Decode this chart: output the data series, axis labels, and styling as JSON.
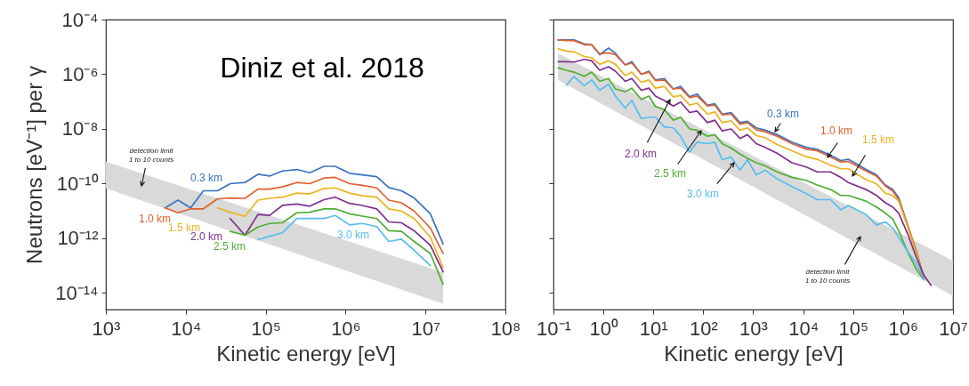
{
  "chart_data": [
    {
      "type": "line",
      "log": "xy",
      "xlabel": "Kinetic energy [eV]",
      "ylabel": "Neutrons [eV⁻¹] per γ",
      "xlim": [
        1000,
        100000000
      ],
      "ylim": [
        2.5e-15,
        0.0001
      ],
      "xticks": [
        {
          "value": 1000,
          "label": "10³"
        },
        {
          "value": 10000,
          "label": "10⁴"
        },
        {
          "value": 100000,
          "label": "10⁵"
        },
        {
          "value": 1000000,
          "label": "10⁶"
        },
        {
          "value": 10000000,
          "label": "10⁷"
        },
        {
          "value": 100000000,
          "label": "10⁸"
        }
      ],
      "yticks": [
        {
          "value": 1e-14,
          "label": "10⁻¹⁴"
        },
        {
          "value": 1e-12,
          "label": "10⁻¹²"
        },
        {
          "value": 1e-10,
          "label": "10⁻¹⁰"
        },
        {
          "value": 1e-08,
          "label": "10⁻⁸"
        },
        {
          "value": 1e-06,
          "label": "10⁻⁶"
        },
        {
          "value": 0.0001,
          "label": "10⁻⁴"
        }
      ],
      "annotations": [
        "Diniz et al. 2018",
        "detection limit\n1 to 10 counts"
      ],
      "x": [
        5500,
        8000,
        11500,
        16600,
        25000,
        36000,
        55000,
        80000,
        112000,
        162000,
        245000,
        355000,
        537000,
        741000,
        1120000,
        1620000,
        2450000,
        3470000,
        5000000,
        7200000,
        11500000,
        16600000
      ],
      "series": [
        {
          "type": "area",
          "color": "#d9d9d9",
          "x": [
            1000,
            16600000
          ],
          "values": [
            null,
            null
          ],
          "lower": [
            6.7e-11,
            4.1e-15
          ],
          "upper": [
            6.4e-10,
            5.7e-14
          ]
        },
        {
          "name": "0.3 km",
          "color": "#3a72c2",
          "values": [
            1.3e-11,
            2.5e-11,
            1.3e-11,
            5.5e-11,
            5.5e-11,
            1e-10,
            1.1e-10,
            2.2e-10,
            1.9e-10,
            2.9e-10,
            3.3e-10,
            2.5e-10,
            4.3e-10,
            4.3e-10,
            2.4e-10,
            2.1e-10,
            1.8e-10,
            7.2e-11,
            5.5e-11,
            3e-11,
            7.9e-12,
            6.2e-13
          ]
        },
        {
          "name": "1.0 km",
          "color": "#e0602e",
          "values": [
            1.3e-11,
            8.6e-12,
            1.2e-11,
            1.2e-11,
            2.8e-11,
            3e-11,
            2.9e-11,
            6.3e-11,
            6.3e-11,
            7.6e-11,
            1.1e-10,
            1e-10,
            1.6e-10,
            1.7e-10,
            1e-10,
            8.7e-11,
            7e-11,
            2.5e-11,
            2e-11,
            1e-11,
            2.4e-12,
            2.8e-13
          ]
        },
        {
          "name": "1.5 km",
          "color": "#edb21f",
          "values": [
            null,
            null,
            null,
            null,
            1.3e-11,
            9e-12,
            6.4e-12,
            2.5e-11,
            2.9e-11,
            3.2e-11,
            4.5e-11,
            4.2e-11,
            6.7e-11,
            7e-11,
            4.5e-11,
            3.6e-11,
            3.2e-11,
            1.2e-11,
            1e-11,
            5.3e-12,
            1.1e-12,
            8.5e-14
          ]
        },
        {
          "name": "2.0 km",
          "color": "#7e2f8e",
          "values": [
            null,
            null,
            null,
            null,
            null,
            5.3e-12,
            1.3e-12,
            7.5e-12,
            6.9e-12,
            1.6e-11,
            1.8e-11,
            1.5e-11,
            2.6e-11,
            3.2e-11,
            1.9e-11,
            1.6e-11,
            1.2e-11,
            4e-12,
            3.7e-12,
            1.9e-12,
            5.5e-13,
            6e-14
          ]
        },
        {
          "name": "2.5 km",
          "color": "#4fae34",
          "values": [
            null,
            null,
            null,
            null,
            null,
            1.8e-12,
            1.3e-12,
            2.6e-12,
            3.5e-12,
            3.7e-12,
            8.6e-12,
            9e-12,
            1.2e-11,
            1.2e-11,
            7.9e-12,
            6.5e-12,
            5.3e-12,
            1.9e-12,
            1.8e-12,
            7.7e-13,
            2.8e-13,
            2.1e-14
          ]
        },
        {
          "name": "3.0 km",
          "color": "#56bdee",
          "values": [
            null,
            null,
            null,
            null,
            null,
            null,
            null,
            8.9e-13,
            1.2e-12,
            1.6e-12,
            5.3e-12,
            5.3e-12,
            5.3e-12,
            6.9e-12,
            3.1e-12,
            3.5e-12,
            2.7e-12,
            7.7e-13,
            9.3e-13,
            3.7e-13,
            1e-13,
            null
          ]
        }
      ]
    },
    {
      "type": "line",
      "log": "xy",
      "xlabel": "Kinetic energy [eV]",
      "xlim": [
        0.1,
        10000000
      ],
      "ylim": [
        2.5e-15,
        0.0001
      ],
      "tick_labels": "x",
      "xticks": [
        {
          "value": 0.1,
          "label": "10⁻¹"
        },
        {
          "value": 1,
          "label": "10⁰"
        },
        {
          "value": 10,
          "label": "10¹"
        },
        {
          "value": 100,
          "label": "10²"
        },
        {
          "value": 1000,
          "label": "10³"
        },
        {
          "value": 10000,
          "label": "10⁴"
        },
        {
          "value": 100000,
          "label": "10⁵"
        },
        {
          "value": 1000000,
          "label": "10⁶"
        },
        {
          "value": 10000000,
          "label": "10⁷"
        }
      ],
      "yticks": [
        {
          "value": 1e-14,
          "label": null
        },
        {
          "value": 1e-12,
          "label": null
        },
        {
          "value": 1e-10,
          "label": null
        },
        {
          "value": 1e-08,
          "label": null
        },
        {
          "value": 1e-06,
          "label": null
        },
        {
          "value": 0.0001,
          "label": null
        }
      ],
      "annotations": [
        "detection limit\n1 to 10 counts"
      ],
      "x": [
        0.124,
        0.182,
        0.257,
        0.415,
        0.583,
        0.844,
        1.27,
        1.74,
        2.74,
        3.7,
        5.73,
        8.17,
        11,
        16.6,
        25.1,
        35.3,
        53.2,
        74.9,
        121,
        170,
        239,
        361,
        544,
        765,
        1150,
        1740,
        3000,
        5940,
        11800,
        19000,
        35200,
        56800,
        80000,
        182000,
        293000,
        442000,
        621000,
        817000,
        1230000,
        1850000,
        2610000,
        3670000
      ],
      "series": [
        {
          "type": "area",
          "color": "#d9d9d9",
          "x": [
            0.124,
            10000000
          ],
          "values": [
            null,
            null
          ],
          "lower": [
            6.2e-07,
            7.8e-15
          ],
          "upper": [
            5.8e-06,
            1.5e-13
          ]
        },
        {
          "name": "0.3 km",
          "color": "#3a72c2",
          "values": [
            1.8e-05,
            1.8e-05,
            1.8e-05,
            1.3e-05,
            1.2e-05,
            5.2e-06,
            9.1e-06,
            5.8e-06,
            2.2e-06,
            2.9e-06,
            1e-06,
            1.3e-06,
            6.2e-07,
            7e-07,
            2.9e-07,
            3.6e-07,
            1.5e-07,
            1.9e-07,
            7.4e-08,
            8.4e-08,
            3.5e-08,
            4e-08,
            1.7e-08,
            1.9e-08,
            1.1e-08,
            9e-09,
            6.2e-09,
            3.3e-09,
            2.1e-09,
            1.8e-09,
            1.1e-09,
            7e-10,
            7.8e-10,
            3.3e-10,
            2.1e-10,
            8.9e-11,
            6.1e-11,
            3.1e-11,
            3.1e-12,
            3.3e-13,
            3.5e-14,
            null
          ]
        },
        {
          "name": "1.0 km",
          "color": "#e0602e",
          "values": [
            1.8e-05,
            1.7e-05,
            1.7e-05,
            1.2e-05,
            1.2e-05,
            5.6e-06,
            6.1e-06,
            5.2e-06,
            2.2e-06,
            2.6e-06,
            1e-06,
            1.2e-06,
            5.9e-07,
            6.2e-07,
            2.9e-07,
            3.1e-07,
            1.4e-07,
            1.6e-07,
            6.9e-08,
            7.4e-08,
            3.3e-08,
            3.5e-08,
            1.5e-08,
            1.7e-08,
            9.4e-09,
            7.9e-09,
            5.4e-09,
            2.9e-09,
            1.8e-09,
            1.6e-09,
            9.5e-10,
            6.2e-10,
            6.5e-10,
            2.9e-10,
            1.9e-10,
            8.3e-11,
            5.4e-11,
            2.6e-11,
            3.1e-12,
            3.3e-13,
            3.5e-14,
            null
          ]
        },
        {
          "name": "1.5 km",
          "color": "#edb21f",
          "values": [
            8.5e-06,
            7.1e-06,
            6.6e-06,
            4.5e-06,
            4e-06,
            2.3e-06,
            3.1e-06,
            2.3e-06,
            9e-07,
            1.2e-06,
            5.1e-07,
            6.2e-07,
            3.1e-07,
            3.6e-07,
            1.5e-07,
            1.7e-07,
            7.4e-08,
            8.9e-08,
            3.5e-08,
            4.2e-08,
            1.7e-08,
            2e-08,
            9e-09,
            1.1e-08,
            5.7e-09,
            4.8e-09,
            2.7e-09,
            1.6e-09,
            9.5e-10,
            7.8e-10,
            4.7e-10,
            3.5e-10,
            3.5e-10,
            1.4e-10,
            1e-10,
            4.5e-11,
            3.7e-11,
            2.3e-11,
            2.7e-12,
            2.9e-13,
            3.1e-14,
            null
          ]
        },
        {
          "name": "2.0 km",
          "color": "#7e2f8e",
          "values": [
            2.9e-06,
            2.9e-06,
            2.8e-06,
            3.5e-06,
            3.1e-06,
            1.4e-06,
            1.9e-06,
            1.3e-06,
            5.5e-07,
            7e-07,
            2.6e-07,
            3.1e-07,
            1.6e-07,
            1.1e-07,
            6.9e-08,
            9.6e-08,
            4e-08,
            4.5e-08,
            1.7e-08,
            2.1e-08,
            8.5e-09,
            1e-08,
            4.5e-09,
            6.2e-09,
            2.9e-09,
            2.1e-09,
            1.3e-09,
            5.8e-10,
            4e-10,
            2.7e-10,
            2.7e-10,
            1.7e-10,
            1.1e-10,
            6.1e-11,
            3.7e-11,
            2e-11,
            1.4e-11,
            8.4e-12,
            1.5e-12,
            2e-13,
            4.5e-14,
            1.9e-14
          ]
        },
        {
          "name": "2.5 km",
          "color": "#4fae34",
          "values": [
            1.7e-06,
            1.4e-06,
            1.2e-06,
            8.4e-07,
            1.2e-06,
            5.5e-07,
            7e-07,
            2.9e-07,
            2.3e-07,
            3.1e-07,
            1.2e-07,
            1.6e-07,
            6.6e-08,
            5.1e-08,
            2.1e-08,
            2.7e-08,
            1e-08,
            9e-09,
            5.4e-09,
            6.2e-09,
            2.9e-09,
            2e-09,
            1.2e-09,
            8.4e-10,
            5.8e-10,
            4.5e-10,
            2.7e-10,
            1.7e-10,
            1.3e-10,
            8.9e-11,
            6.1e-11,
            3.7e-11,
            3.7e-11,
            2.3e-11,
            1.4e-11,
            8.4e-12,
            5.1e-12,
            1.9e-12,
            3.3e-13,
            7.3e-14,
            3.1e-14,
            null
          ]
        },
        {
          "name": "3.0 km",
          "color": "#56bdee",
          "values": [
            null,
            4e-07,
            8.4e-07,
            3.8e-07,
            6.2e-07,
            2.6e-07,
            4.3e-07,
            1.6e-07,
            5.8e-08,
            1.1e-07,
            2.4e-08,
            2.7e-08,
            2.7e-08,
            1.2e-08,
            1.1e-08,
            5.4e-09,
            1.4e-09,
            3.3e-09,
            2.9e-09,
            3.3e-09,
            7.4e-10,
            9.5e-10,
            3.1e-10,
            7.4e-10,
            2.1e-10,
            3.1e-10,
            1.5e-10,
            7.9e-11,
            4.2e-11,
            2.6e-11,
            2.6e-11,
            1.1e-11,
            1.6e-11,
            7.4e-12,
            3.1e-12,
            4e-12,
            2.4e-12,
            1.1e-12,
            3.3e-13,
            1.2e-13,
            3.1e-14,
            null
          ]
        }
      ]
    }
  ]
}
